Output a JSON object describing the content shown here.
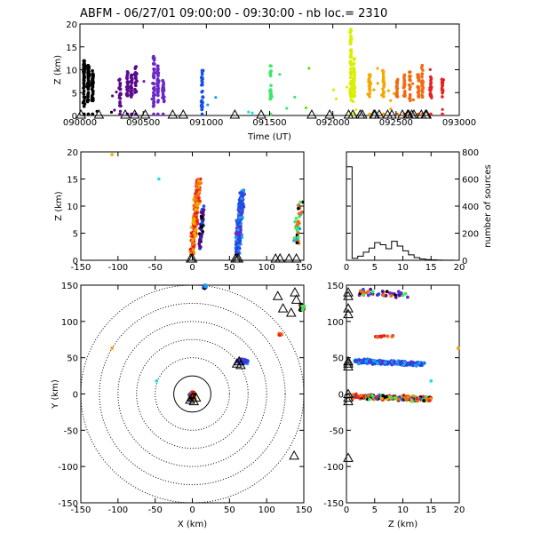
{
  "title": "ABFM - 06/27/01 09:00:00 - 09:30:00 - nb loc.=   2310",
  "chart_data": [
    {
      "id": "time-height",
      "type": "scatter",
      "xlabel": "Time (UT)",
      "ylabel": "Z (km)",
      "xlim": [
        0,
        1800
      ],
      "ylim": [
        0,
        20
      ],
      "xtick_labels": [
        "090000",
        "090500",
        "091000",
        "091500",
        "092000",
        "092500",
        "093000"
      ],
      "ytick_labels": [
        "0",
        "5",
        "10",
        "15",
        "20"
      ],
      "color_scale": "time (purple to red)",
      "station_times": [
        5,
        90,
        215,
        260,
        310,
        440,
        490,
        735,
        860,
        1100,
        1185,
        1275,
        1295,
        1330,
        1340,
        1395,
        1400,
        1420,
        1460,
        1480,
        1530,
        1555,
        1560,
        1575,
        1585,
        1620,
        1640,
        1645
      ],
      "columns": [
        {
          "t": 20,
          "zmin": 2,
          "zmax": 12,
          "n": 60
        },
        {
          "t": 40,
          "zmin": 3,
          "zmax": 11,
          "n": 50
        },
        {
          "t": 60,
          "zmin": 3,
          "zmax": 10,
          "n": 40
        },
        {
          "t": 190,
          "zmin": 2,
          "zmax": 8,
          "n": 20
        },
        {
          "t": 225,
          "zmin": 4,
          "zmax": 10,
          "n": 25
        },
        {
          "t": 245,
          "zmin": 4,
          "zmax": 9,
          "n": 25
        },
        {
          "t": 265,
          "zmin": 5,
          "zmax": 11,
          "n": 20
        },
        {
          "t": 350,
          "zmin": 2,
          "zmax": 13,
          "n": 40
        },
        {
          "t": 370,
          "zmin": 2,
          "zmax": 11,
          "n": 30
        },
        {
          "t": 395,
          "zmin": 3,
          "zmax": 8,
          "n": 20
        },
        {
          "t": 580,
          "zmin": 1,
          "zmax": 10,
          "n": 30
        },
        {
          "t": 905,
          "zmin": 3,
          "zmax": 11,
          "n": 25
        },
        {
          "t": 1285,
          "zmin": 3,
          "zmax": 19,
          "n": 60
        },
        {
          "t": 1300,
          "zmin": 3,
          "zmax": 13,
          "n": 40
        },
        {
          "t": 1375,
          "zmin": 4,
          "zmax": 9,
          "n": 20
        },
        {
          "t": 1440,
          "zmin": 4,
          "zmax": 10,
          "n": 20
        },
        {
          "t": 1505,
          "zmin": 4,
          "zmax": 8,
          "n": 20
        },
        {
          "t": 1540,
          "zmin": 4,
          "zmax": 9,
          "n": 20
        },
        {
          "t": 1565,
          "zmin": 3,
          "zmax": 10,
          "n": 20
        },
        {
          "t": 1605,
          "zmin": 4,
          "zmax": 9,
          "n": 20
        },
        {
          "t": 1625,
          "zmin": 3,
          "zmax": 11,
          "n": 20
        },
        {
          "t": 1665,
          "zmin": 4,
          "zmax": 9,
          "n": 20
        },
        {
          "t": 1720,
          "zmin": 4,
          "zmax": 8,
          "n": 20
        }
      ]
    },
    {
      "id": "x-height",
      "type": "scatter",
      "xlabel": "",
      "ylabel": "Z (km)",
      "xlim": [
        -150,
        150
      ],
      "ylim": [
        0,
        20
      ],
      "xtick_labels": [
        "-150",
        "-100",
        "-50",
        "0",
        "50",
        "100",
        "150"
      ],
      "ytick_labels": [
        "0",
        "5",
        "10",
        "15",
        "20"
      ],
      "station_x": [
        -2,
        0,
        58,
        60,
        62,
        112,
        118,
        130,
        140
      ]
    },
    {
      "id": "altitude-histogram",
      "type": "line",
      "xlim": [
        0,
        20
      ],
      "ylim": [
        0,
        800
      ],
      "ylabel_right": "number of sources",
      "xtick_labels": [
        "0",
        "5",
        "10",
        "15",
        "20"
      ],
      "ytick_labels": [
        "0",
        "200",
        "400",
        "600",
        "800"
      ],
      "bins_z": [
        0,
        1,
        2,
        3,
        4,
        5,
        6,
        7,
        8,
        9,
        10,
        11,
        12,
        13,
        14,
        15,
        16,
        17,
        18,
        19
      ],
      "counts": [
        690,
        15,
        30,
        60,
        90,
        130,
        115,
        85,
        140,
        105,
        70,
        40,
        20,
        10,
        5,
        3,
        2,
        1,
        1,
        0
      ]
    },
    {
      "id": "plan-view",
      "type": "scatter",
      "xlabel": "X (km)",
      "ylabel": "Y (km)",
      "xlim": [
        -150,
        150
      ],
      "ylim": [
        -150,
        150
      ],
      "xtick_labels": [
        "-150",
        "-100",
        "-50",
        "0",
        "50",
        "100",
        "150"
      ],
      "ytick_labels": [
        "-150",
        "-100",
        "-50",
        "0",
        "50",
        "100",
        "150"
      ],
      "range_rings_km": [
        25,
        50,
        75,
        100,
        125,
        150
      ],
      "stations_xy": [
        [
          0,
          -5
        ],
        [
          2,
          -10
        ],
        [
          -3,
          -8
        ],
        [
          5,
          -5
        ],
        [
          60,
          42
        ],
        [
          63,
          45
        ],
        [
          65,
          40
        ],
        [
          115,
          135
        ],
        [
          122,
          118
        ],
        [
          133,
          112
        ],
        [
          138,
          140
        ],
        [
          140,
          130
        ],
        [
          137,
          -85
        ]
      ]
    },
    {
      "id": "z-y-view",
      "type": "scatter",
      "xlabel": "Z (km)",
      "ylabel": "",
      "xlim": [
        0,
        20
      ],
      "ylim": [
        -150,
        150
      ],
      "xtick_labels": [
        "0",
        "5",
        "10",
        "15",
        "20"
      ],
      "ytick_labels": [
        "-150",
        "-100",
        "-50",
        "0",
        "50",
        "100",
        "150"
      ],
      "station_y": [
        -88,
        -10,
        -5,
        0,
        38,
        42,
        45,
        110,
        118,
        135,
        140
      ]
    }
  ],
  "colors": {
    "series_palette": [
      "#000000",
      "#5a0a8c",
      "#6a28c8",
      "#1a4ee8",
      "#1e9ef0",
      "#20e0e0",
      "#3ce86a",
      "#5ae80a",
      "#d8f000",
      "#f5a800",
      "#f36a10",
      "#e82020"
    ]
  }
}
